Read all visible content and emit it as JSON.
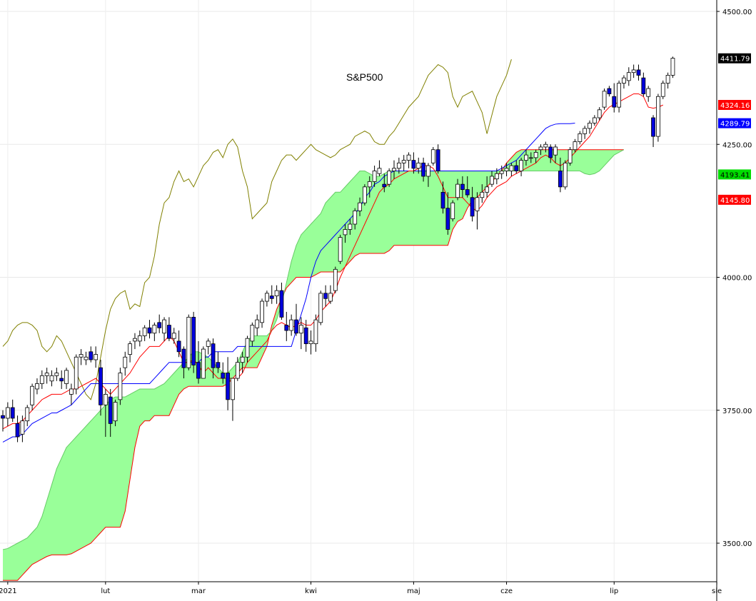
{
  "chart_data": {
    "type": "candlestick",
    "title": "S&P500",
    "ylim": [
      3410,
      4510
    ],
    "y_ticks": [
      3500,
      3750,
      4000,
      4250,
      4500
    ],
    "y_tick_labels": [
      "3500.00",
      "3750.00",
      "4000.00",
      "4250.00",
      "4500.00"
    ],
    "x_tick_labels": [
      "2021",
      "lut",
      "mar",
      "kwi",
      "maj",
      "cze",
      "lip",
      "sie"
    ],
    "grid": true,
    "colors": {
      "up_candle": "#ffffff",
      "down_candle": "#0000dd",
      "candle_outline": "#000000",
      "tenkan": "#ff0000",
      "kijun": "#0000ff",
      "chikou": "#808000",
      "cloud": "#99ff99",
      "senkou_b": "#ff0000",
      "last_price_tag": "#000000",
      "tenkan_tag": "#ff0000",
      "kijun_tag": "#0000ff",
      "senkou_a_tag": "#00dd00",
      "senkou_b_tag": "#ff0000"
    },
    "value_tags": {
      "last_price": "4411.79",
      "tenkan": "4324.16",
      "kijun": "4289.79",
      "senkou_a": "4193.41",
      "senkou_b": "4145.80"
    },
    "candles": [
      [
        3740,
        3750,
        3710,
        3735
      ],
      [
        3735,
        3765,
        3720,
        3755
      ],
      [
        3755,
        3770,
        3728,
        3735
      ],
      [
        3725,
        3740,
        3690,
        3700
      ],
      [
        3705,
        3740,
        3690,
        3730
      ],
      [
        3730,
        3760,
        3720,
        3755
      ],
      [
        3760,
        3800,
        3750,
        3795
      ],
      [
        3790,
        3810,
        3780,
        3800
      ],
      [
        3800,
        3825,
        3790,
        3815
      ],
      [
        3815,
        3830,
        3800,
        3820
      ],
      [
        3805,
        3825,
        3795,
        3815
      ],
      [
        3815,
        3830,
        3805,
        3820
      ],
      [
        3810,
        3825,
        3790,
        3805
      ],
      [
        3800,
        3830,
        3790,
        3825
      ],
      [
        3780,
        3800,
        3760,
        3790
      ],
      [
        3790,
        3855,
        3780,
        3850
      ],
      [
        3850,
        3865,
        3835,
        3855
      ],
      [
        3845,
        3860,
        3835,
        3850
      ],
      [
        3860,
        3870,
        3840,
        3845
      ],
      [
        3845,
        3870,
        3830,
        3855
      ],
      [
        3830,
        3845,
        3740,
        3760
      ],
      [
        3760,
        3790,
        3700,
        3780
      ],
      [
        3775,
        3790,
        3700,
        3725
      ],
      [
        3730,
        3770,
        3720,
        3765
      ],
      [
        3770,
        3830,
        3760,
        3820
      ],
      [
        3830,
        3860,
        3815,
        3850
      ],
      [
        3855,
        3880,
        3840,
        3875
      ],
      [
        3880,
        3895,
        3865,
        3885
      ],
      [
        3880,
        3900,
        3870,
        3890
      ],
      [
        3890,
        3910,
        3880,
        3905
      ],
      [
        3905,
        3920,
        3885,
        3895
      ],
      [
        3895,
        3915,
        3880,
        3910
      ],
      [
        3915,
        3930,
        3895,
        3905
      ],
      [
        3895,
        3925,
        3880,
        3920
      ],
      [
        3910,
        3925,
        3880,
        3885
      ],
      [
        3885,
        3905,
        3875,
        3895
      ],
      [
        3880,
        3900,
        3850,
        3860
      ],
      [
        3865,
        3870,
        3810,
        3830
      ],
      [
        3830,
        3930,
        3825,
        3925
      ],
      [
        3925,
        3935,
        3820,
        3835
      ],
      [
        3840,
        3880,
        3800,
        3810
      ],
      [
        3810,
        3870,
        3810,
        3865
      ],
      [
        3870,
        3885,
        3855,
        3880
      ],
      [
        3875,
        3885,
        3810,
        3830
      ],
      [
        3840,
        3860,
        3820,
        3830
      ],
      [
        3820,
        3840,
        3800,
        3810
      ],
      [
        3820,
        3850,
        3750,
        3770
      ],
      [
        3770,
        3810,
        3730,
        3810
      ],
      [
        3810,
        3850,
        3805,
        3840
      ],
      [
        3840,
        3860,
        3820,
        3850
      ],
      [
        3850,
        3890,
        3840,
        3885
      ],
      [
        3880,
        3915,
        3870,
        3910
      ],
      [
        3905,
        3930,
        3890,
        3920
      ],
      [
        3915,
        3960,
        3905,
        3955
      ],
      [
        3955,
        3975,
        3945,
        3970
      ],
      [
        3965,
        3985,
        3950,
        3960
      ],
      [
        3965,
        3985,
        3950,
        3975
      ],
      [
        3975,
        3990,
        3920,
        3925
      ],
      [
        3910,
        3935,
        3880,
        3900
      ],
      [
        3900,
        3930,
        3890,
        3920
      ],
      [
        3920,
        3950,
        3890,
        3895
      ],
      [
        3895,
        3925,
        3865,
        3910
      ],
      [
        3905,
        3920,
        3860,
        3875
      ],
      [
        3875,
        3900,
        3855,
        3880
      ],
      [
        3875,
        3930,
        3860,
        3920
      ],
      [
        3915,
        3975,
        3910,
        3970
      ],
      [
        3970,
        3985,
        3945,
        3960
      ],
      [
        3955,
        3985,
        3950,
        3970
      ],
      [
        3975,
        4020,
        3970,
        4015
      ],
      [
        4030,
        4080,
        4025,
        4075
      ],
      [
        4080,
        4100,
        4065,
        4090
      ],
      [
        4090,
        4110,
        4080,
        4100
      ],
      [
        4100,
        4130,
        4090,
        4125
      ],
      [
        4125,
        4150,
        4115,
        4140
      ],
      [
        4140,
        4175,
        4135,
        4170
      ],
      [
        4170,
        4190,
        4150,
        4180
      ],
      [
        4180,
        4210,
        4170,
        4200
      ],
      [
        4195,
        4220,
        4190,
        4205
      ],
      [
        4175,
        4195,
        4160,
        4170
      ],
      [
        4175,
        4205,
        4170,
        4200
      ],
      [
        4200,
        4220,
        4185,
        4205
      ],
      [
        4205,
        4225,
        4195,
        4215
      ],
      [
        4215,
        4230,
        4200,
        4220
      ],
      [
        4220,
        4235,
        4205,
        4230
      ],
      [
        4220,
        4235,
        4195,
        4205
      ],
      [
        4205,
        4225,
        4195,
        4215
      ],
      [
        4215,
        4225,
        4180,
        4190
      ],
      [
        4190,
        4215,
        4170,
        4210
      ],
      [
        4215,
        4245,
        4210,
        4240
      ],
      [
        4240,
        4250,
        4195,
        4200
      ],
      [
        4160,
        4180,
        4120,
        4130
      ],
      [
        4130,
        4160,
        4080,
        4090
      ],
      [
        4110,
        4145,
        4105,
        4140
      ],
      [
        4150,
        4185,
        4145,
        4175
      ],
      [
        4175,
        4190,
        4150,
        4165
      ],
      [
        4165,
        4190,
        4150,
        4155
      ],
      [
        4150,
        4170,
        4105,
        4115
      ],
      [
        4125,
        4160,
        4090,
        4150
      ],
      [
        4150,
        4175,
        4140,
        4160
      ],
      [
        4160,
        4190,
        4150,
        4170
      ],
      [
        4175,
        4200,
        4170,
        4190
      ],
      [
        4185,
        4205,
        4175,
        4195
      ],
      [
        4195,
        4210,
        4185,
        4200
      ],
      [
        4200,
        4215,
        4190,
        4205
      ],
      [
        4200,
        4215,
        4190,
        4210
      ],
      [
        4210,
        4220,
        4195,
        4200
      ],
      [
        4200,
        4225,
        4190,
        4220
      ],
      [
        4220,
        4240,
        4210,
        4230
      ],
      [
        4225,
        4235,
        4215,
        4225
      ],
      [
        4225,
        4240,
        4215,
        4235
      ],
      [
        4240,
        4250,
        4230,
        4245
      ],
      [
        4245,
        4255,
        4235,
        4250
      ],
      [
        4245,
        4250,
        4215,
        4225
      ],
      [
        4230,
        4250,
        4215,
        4245
      ],
      [
        4200,
        4225,
        4160,
        4170
      ],
      [
        4170,
        4220,
        4165,
        4215
      ],
      [
        4215,
        4245,
        4210,
        4240
      ],
      [
        4240,
        4260,
        4235,
        4255
      ],
      [
        4255,
        4275,
        4250,
        4270
      ],
      [
        4270,
        4285,
        4260,
        4280
      ],
      [
        4280,
        4295,
        4270,
        4290
      ],
      [
        4290,
        4305,
        4285,
        4300
      ],
      [
        4300,
        4320,
        4295,
        4315
      ],
      [
        4320,
        4355,
        4315,
        4350
      ],
      [
        4355,
        4360,
        4340,
        4345
      ],
      [
        4340,
        4365,
        4310,
        4320
      ],
      [
        4320,
        4370,
        4310,
        4365
      ],
      [
        4365,
        4380,
        4355,
        4375
      ],
      [
        4370,
        4395,
        4360,
        4385
      ],
      [
        4385,
        4400,
        4375,
        4390
      ],
      [
        4390,
        4400,
        4370,
        4380
      ],
      [
        4375,
        4385,
        4340,
        4345
      ],
      [
        4340,
        4360,
        4330,
        4355
      ],
      [
        4300,
        4305,
        4245,
        4265
      ],
      [
        4265,
        4345,
        4255,
        4340
      ],
      [
        4340,
        4370,
        4335,
        4365
      ],
      [
        4365,
        4385,
        4355,
        4380
      ],
      [
        4380,
        4415,
        4375,
        4412
      ]
    ],
    "tenkan": [
      3715,
      3720,
      3725,
      3725,
      3730,
      3740,
      3750,
      3760,
      3770,
      3775,
      3780,
      3780,
      3780,
      3785,
      3790,
      3790,
      3795,
      3800,
      3805,
      3810,
      3800,
      3790,
      3780,
      3790,
      3800,
      3810,
      3820,
      3835,
      3850,
      3860,
      3870,
      3870,
      3870,
      3880,
      3890,
      3880,
      3860,
      3840,
      3840,
      3845,
      3835,
      3820,
      3830,
      3820,
      3810,
      3810,
      3810,
      3810,
      3810,
      3820,
      3840,
      3850,
      3860,
      3870,
      3880,
      3900,
      3910,
      3915,
      3910,
      3905,
      3910,
      3915,
      3910,
      3910,
      3920,
      3935,
      3945,
      3955,
      3975,
      4000,
      4020,
      4040,
      4060,
      4080,
      4100,
      4120,
      4140,
      4160,
      4170,
      4175,
      4185,
      4190,
      4195,
      4200,
      4200,
      4205,
      4210,
      4210,
      4205,
      4190,
      4170,
      4150,
      4150,
      4150,
      4150,
      4140,
      4130,
      4125,
      4135,
      4150,
      4160,
      4170,
      4175,
      4180,
      4190,
      4195,
      4200,
      4205,
      4210,
      4215,
      4225,
      4230,
      4225,
      4215,
      4210,
      4215,
      4225,
      4235,
      4245,
      4255,
      4265,
      4280,
      4295,
      4310,
      4320,
      4325,
      4330,
      4335,
      4340,
      4345,
      4345,
      4340,
      4320,
      4318,
      4320,
      4324
    ],
    "kijun": [
      3690,
      3695,
      3700,
      3700,
      3705,
      3715,
      3725,
      3730,
      3735,
      3740,
      3745,
      3745,
      3750,
      3755,
      3760,
      3770,
      3780,
      3790,
      3800,
      3800,
      3800,
      3800,
      3800,
      3800,
      3800,
      3800,
      3800,
      3800,
      3800,
      3800,
      3800,
      3810,
      3820,
      3830,
      3840,
      3840,
      3840,
      3840,
      3840,
      3840,
      3840,
      3850,
      3850,
      3860,
      3860,
      3860,
      3860,
      3860,
      3870,
      3870,
      3870,
      3870,
      3870,
      3870,
      3870,
      3870,
      3870,
      3870,
      3870,
      3870,
      3900,
      3930,
      3960,
      4000,
      4030,
      4050,
      4060,
      4070,
      4080,
      4090,
      4100,
      4110,
      4120,
      4130,
      4150,
      4160,
      4175,
      4180,
      4190,
      4195,
      4200,
      4200,
      4200,
      4200,
      4200,
      4200,
      4200,
      4200,
      4200,
      4200,
      4200,
      4200,
      4200,
      4200,
      4200,
      4200,
      4200,
      4200,
      4200,
      4200,
      4200,
      4200,
      4205,
      4210,
      4215,
      4220,
      4230,
      4240,
      4250,
      4260,
      4270,
      4280,
      4285,
      4288,
      4289,
      4289,
      4289,
      4290
    ],
    "chikou": [
      3870,
      3880,
      3900,
      3910,
      3915,
      3915,
      3910,
      3900,
      3870,
      3860,
      3870,
      3890,
      3880,
      3860,
      3840,
      3820,
      3800,
      3780,
      3770,
      3800,
      3850,
      3900,
      3940,
      3960,
      3970,
      3975,
      3940,
      3950,
      3945,
      3990,
      4000,
      4040,
      4100,
      4140,
      4150,
      4180,
      4200,
      4180,
      4185,
      4170,
      4190,
      4210,
      4220,
      4235,
      4240,
      4225,
      4250,
      4260,
      4245,
      4200,
      4170,
      4110,
      4120,
      4130,
      4140,
      4180,
      4200,
      4220,
      4230,
      4230,
      4220,
      4230,
      4240,
      4250,
      4240,
      4235,
      4230,
      4225,
      4230,
      4240,
      4245,
      4250,
      4265,
      4270,
      4275,
      4270,
      4255,
      4250,
      4250,
      4265,
      4275,
      4290,
      4305,
      4320,
      4330,
      4340,
      4360,
      4380,
      4390,
      4400,
      4395,
      4385,
      4340,
      4320,
      4340,
      4345,
      4350,
      4330,
      4310,
      4270,
      4305,
      4340,
      4360,
      4380,
      4410
    ],
    "senkou_a": [
      3488,
      3490,
      3495,
      3500,
      3505,
      3510,
      3520,
      3530,
      3550,
      3580,
      3610,
      3640,
      3660,
      3680,
      3690,
      3700,
      3710,
      3720,
      3730,
      3740,
      3750,
      3760,
      3770,
      3775,
      3775,
      3775,
      3780,
      3785,
      3790,
      3790,
      3790,
      3790,
      3795,
      3800,
      3810,
      3820,
      3830,
      3840,
      3850,
      3860,
      3860,
      3855,
      3850,
      3840,
      3830,
      3820,
      3820,
      3830,
      3840,
      3860,
      3880,
      3890,
      3890,
      3890,
      3890,
      3900,
      3920,
      3950,
      3990,
      4030,
      4060,
      4080,
      4090,
      4100,
      4110,
      4120,
      4140,
      4150,
      4160,
      4160,
      4170,
      4180,
      4190,
      4200,
      4200,
      4195,
      4190,
      4190,
      4195,
      4200,
      4200,
      4200,
      4200,
      4200,
      4200,
      4200,
      4200,
      4200,
      4200,
      4200,
      4200,
      4200,
      4200,
      4200,
      4200,
      4200,
      4200,
      4200,
      4200,
      4200,
      4200,
      4200,
      4200,
      4200,
      4200,
      4200,
      4200,
      4200,
      4200,
      4200,
      4200,
      4200,
      4200,
      4200,
      4200,
      4200,
      4200,
      4200,
      4200,
      4195,
      4193,
      4195,
      4200,
      4210,
      4220,
      4230,
      4235,
      4240
    ],
    "senkou_b": [
      3430,
      3430,
      3430,
      3430,
      3440,
      3450,
      3460,
      3465,
      3470,
      3475,
      3478,
      3478,
      3478,
      3478,
      3480,
      3485,
      3490,
      3495,
      3500,
      3510,
      3520,
      3530,
      3530,
      3530,
      3530,
      3560,
      3620,
      3680,
      3720,
      3730,
      3730,
      3740,
      3740,
      3740,
      3740,
      3760,
      3780,
      3790,
      3795,
      3795,
      3795,
      3795,
      3795,
      3795,
      3795,
      3795,
      3800,
      3810,
      3820,
      3830,
      3830,
      3830,
      3830,
      3850,
      3870,
      3910,
      3940,
      3960,
      3980,
      3990,
      4000,
      4000,
      4000,
      4000,
      4005,
      4010,
      4010,
      4010,
      4010,
      4010,
      4020,
      4030,
      4040,
      4045,
      4045,
      4045,
      4045,
      4045,
      4045,
      4050,
      4060,
      4060,
      4060,
      4060,
      4060,
      4060,
      4060,
      4060,
      4060,
      4060,
      4060,
      4060,
      4090,
      4105,
      4110,
      4130,
      4145,
      4150,
      4160,
      4170,
      4180,
      4190,
      4200,
      4215,
      4225,
      4235,
      4240,
      4240,
      4240,
      4240,
      4240,
      4240,
      4240,
      4240,
      4240,
      4240,
      4240,
      4240,
      4240,
      4240,
      4240,
      4240,
      4240,
      4240,
      4240,
      4240,
      4240,
      4240
    ]
  }
}
